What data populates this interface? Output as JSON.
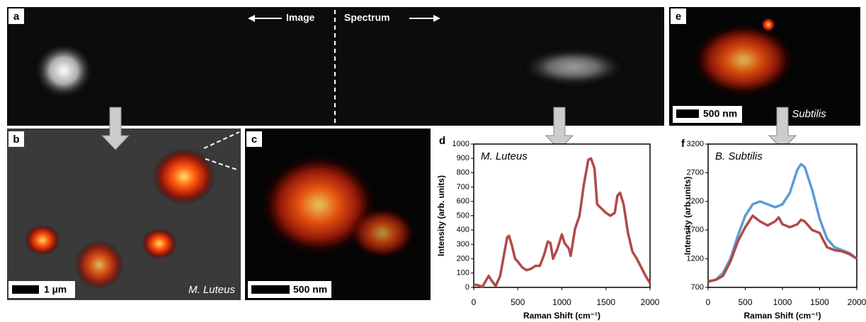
{
  "panels": {
    "a": {
      "label": "a",
      "left_text": "Image",
      "right_text": "Spectrum"
    },
    "b": {
      "label": "b",
      "scale": "1 µm",
      "species": "M. Luteus"
    },
    "c": {
      "label": "c",
      "scale": "500 nm"
    },
    "e": {
      "label": "e",
      "scale": "500 nm",
      "species": "B. Subtilis"
    }
  },
  "chart_data": [
    {
      "type": "line",
      "panel_label": "d",
      "title": "M. Luteus",
      "x_label": "Raman Shift (cm⁻¹)",
      "y_label": "Intensity (arb. units)",
      "xlim": [
        0,
        2000
      ],
      "xticks": [
        0,
        500,
        1000,
        1500,
        2000
      ],
      "ylim": [
        0,
        1000
      ],
      "yticks": [
        0,
        100,
        200,
        300,
        400,
        500,
        600,
        700,
        800,
        900,
        1000
      ],
      "x": [
        0,
        50,
        100,
        150,
        170,
        200,
        250,
        300,
        350,
        380,
        400,
        430,
        470,
        500,
        550,
        600,
        650,
        700,
        750,
        800,
        840,
        870,
        900,
        950,
        1000,
        1030,
        1080,
        1100,
        1150,
        1200,
        1250,
        1300,
        1330,
        1370,
        1400,
        1450,
        1500,
        1550,
        1600,
        1630,
        1660,
        1700,
        1750,
        1800,
        1850,
        1900,
        1950,
        2000
      ],
      "series": [
        {
          "color": "#b04a48",
          "values": [
            20,
            15,
            5,
            60,
            80,
            50,
            10,
            80,
            250,
            350,
            360,
            300,
            200,
            180,
            140,
            120,
            130,
            150,
            150,
            230,
            320,
            310,
            200,
            270,
            370,
            310,
            270,
            220,
            410,
            500,
            720,
            890,
            900,
            830,
            580,
            550,
            520,
            500,
            520,
            640,
            660,
            580,
            380,
            250,
            200,
            140,
            80,
            30
          ]
        }
      ]
    },
    {
      "type": "line",
      "panel_label": "f",
      "title": "B. Subtilis",
      "x_label": "Raman Shift (cm⁻¹)",
      "y_label": "Intensity (arb units)",
      "xlim": [
        0,
        2000
      ],
      "xticks": [
        0,
        500,
        1000,
        1500,
        2000
      ],
      "ylim": [
        700,
        3200
      ],
      "yticks": [
        700,
        1200,
        1700,
        2200,
        2700,
        3200
      ],
      "x": [
        0,
        100,
        200,
        300,
        400,
        500,
        600,
        700,
        800,
        900,
        950,
        1000,
        1100,
        1200,
        1250,
        1300,
        1400,
        1500,
        1600,
        1700,
        1800,
        1900,
        2000
      ],
      "series": [
        {
          "color": "#5b9bd5",
          "values": [
            810,
            830,
            950,
            1200,
            1600,
            1950,
            2150,
            2200,
            2150,
            2100,
            2120,
            2150,
            2350,
            2750,
            2850,
            2800,
            2400,
            1900,
            1550,
            1400,
            1350,
            1300,
            1200
          ]
        },
        {
          "color": "#b04a48",
          "values": [
            800,
            830,
            900,
            1150,
            1500,
            1750,
            1950,
            1850,
            1780,
            1850,
            1920,
            1800,
            1750,
            1800,
            1880,
            1850,
            1700,
            1650,
            1400,
            1350,
            1330,
            1280,
            1200
          ]
        }
      ]
    }
  ]
}
